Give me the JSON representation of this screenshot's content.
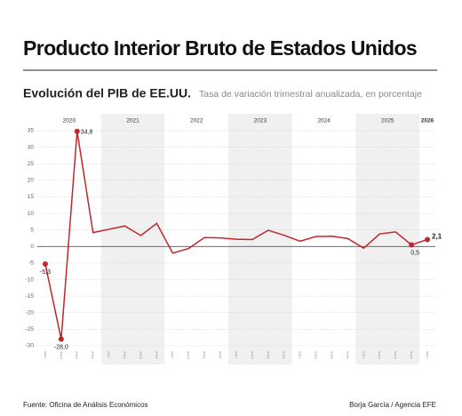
{
  "chart_data": {
    "type": "line",
    "title": "Producto Interior Bruto de Estados Unidos",
    "subtitle": "Evolución del PIB de EE.UU.",
    "description": "Tasa de variación trimestral anualizada, en porcentaje",
    "years": [
      "2020",
      "2021",
      "2022",
      "2023",
      "2024",
      "2025",
      "2026"
    ],
    "categories": [
      "1 trim",
      "2 trim",
      "3 trim",
      "4 trim",
      "1 trim",
      "2 trim",
      "3 trim",
      "4 trim",
      "1 trim",
      "2 trim",
      "3 trim",
      "4 trim",
      "1 trim",
      "2 trim",
      "3 trim",
      "4 trim",
      "1 trim",
      "2 trim",
      "3 trim",
      "4 trim",
      "1 trim",
      "2 trim",
      "3 trim",
      "4 trim",
      "1 trim"
    ],
    "series": [
      {
        "name": "PIB",
        "color": "#c0272d",
        "values": [
          -5.3,
          -28.0,
          34.8,
          4.2,
          5.2,
          6.2,
          3.3,
          7.0,
          -2.0,
          -0.6,
          2.7,
          2.6,
          2.2,
          2.1,
          4.9,
          3.4,
          1.6,
          3.0,
          3.1,
          2.4,
          -0.5,
          3.8,
          4.4,
          0.5,
          2.1
        ],
        "value_labels": [
          "-5,3",
          "-28,0",
          "34,8",
          null,
          null,
          null,
          null,
          null,
          null,
          null,
          null,
          null,
          null,
          null,
          null,
          null,
          null,
          null,
          null,
          null,
          null,
          null,
          null,
          "0,5",
          "2,1"
        ]
      }
    ],
    "ylim": [
      -30,
      35
    ],
    "yticks": [
      -30,
      -25,
      -20,
      -15,
      -10,
      -5,
      0,
      5,
      10,
      15,
      20,
      25,
      30,
      35
    ],
    "grid": true,
    "source": "Fuente: Oficina de Análisis Económicos",
    "credit": "Borja García / Agencia EFE"
  }
}
